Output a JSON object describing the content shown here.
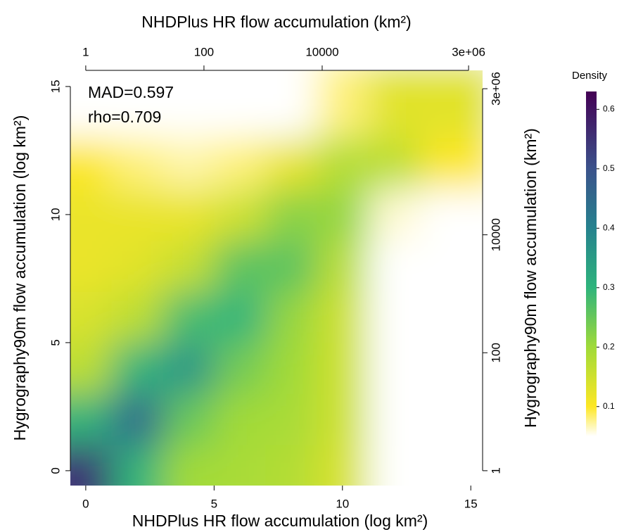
{
  "chart_data": {
    "type": "density2d",
    "xlabel": "NHDPlus HR flow accumulation (log km²)",
    "ylabel": "Hygrography90m flow accumulation (log km²)",
    "x2label": "NHDPlus HR flow accumulation (km²)",
    "y2label": "Hygrography90m flow accumulation (km²)",
    "annotations": [
      "MAD=0.597",
      "rho=0.709"
    ],
    "x": [
      0,
      2,
      4,
      6,
      8,
      10,
      12,
      14
    ],
    "y": [
      0,
      2,
      4,
      6,
      8,
      10,
      12,
      14
    ],
    "z": [
      [
        0.55,
        0.3,
        0.2,
        0.19,
        0.18,
        0.14,
        0.05,
        0.03
      ],
      [
        0.3,
        0.45,
        0.25,
        0.2,
        0.19,
        0.15,
        0.05,
        0.03
      ],
      [
        0.17,
        0.3,
        0.36,
        0.24,
        0.2,
        0.15,
        0.04,
        0.03
      ],
      [
        0.14,
        0.17,
        0.28,
        0.3,
        0.21,
        0.15,
        0.04,
        0.03
      ],
      [
        0.12,
        0.13,
        0.16,
        0.26,
        0.26,
        0.17,
        0.04,
        0.03
      ],
      [
        0.12,
        0.12,
        0.12,
        0.15,
        0.22,
        0.21,
        0.06,
        0.03
      ],
      [
        0.1,
        0.08,
        0.07,
        0.08,
        0.12,
        0.18,
        0.17,
        0.1
      ],
      [
        0.01,
        0.01,
        0.01,
        0.01,
        0.02,
        0.08,
        0.13,
        0.13
      ]
    ],
    "xlim": [
      -0.6,
      15.46
    ],
    "xticks": [
      0,
      5,
      10,
      15
    ],
    "ylim": [
      -0.58,
      15.63
    ],
    "yticks": [
      0,
      5,
      10,
      15
    ],
    "x2log": true,
    "x2ticks": [
      1,
      100,
      10000,
      {
        "value": 3000000,
        "label": "3e+06"
      }
    ],
    "y2log": true,
    "y2ticks": [
      1,
      100,
      10000,
      {
        "value": 3000000,
        "label": "3e+06"
      }
    ],
    "colorbar_title": "Density",
    "clim": [
      0.05,
      0.63
    ],
    "cticks": [
      0.1,
      0.2,
      0.3,
      0.4,
      0.5,
      0.6
    ],
    "colorscale": [
      [
        0.05,
        "#ffffff"
      ],
      [
        0.1,
        "#fde725"
      ],
      [
        0.2,
        "#a0da39"
      ],
      [
        0.3,
        "#2fb47c"
      ],
      [
        0.4,
        "#26828e"
      ],
      [
        0.5,
        "#3b528b"
      ],
      [
        0.63,
        "#440154"
      ]
    ]
  }
}
